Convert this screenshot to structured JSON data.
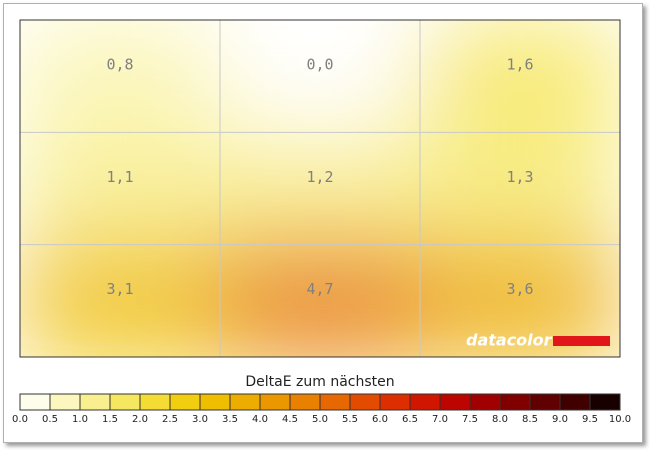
{
  "chart_data": {
    "type": "heatmap",
    "values": [
      [
        0.8,
        0.0,
        1.6
      ],
      [
        1.1,
        1.2,
        1.3
      ],
      [
        3.1,
        4.7,
        3.6
      ]
    ],
    "value_labels": [
      [
        "0,8",
        "0,0",
        "1,6"
      ],
      [
        "1,1",
        "1,2",
        "1,3"
      ],
      [
        "3,1",
        "4,7",
        "3,6"
      ]
    ],
    "grid": true,
    "logo": "datacolor",
    "colorbar_title": "DeltaE zum nächsten",
    "colorbar_lim": [
      0,
      10
    ],
    "colorbar_ticks": [
      {
        "value": 0,
        "label": "0.0"
      },
      0.5,
      {
        "value": 1,
        "label": "1.0"
      },
      1.5,
      {
        "value": 2,
        "label": "2.0"
      },
      2.5,
      {
        "value": 3,
        "label": "3.0"
      },
      3.5,
      {
        "value": 4,
        "label": "4.0"
      },
      4.5,
      {
        "value": 5,
        "label": "5.0"
      },
      5.5,
      {
        "value": 6,
        "label": "6.0"
      },
      6.5,
      {
        "value": 7,
        "label": "7.0"
      },
      7.5,
      {
        "value": 8,
        "label": "8.0"
      },
      8.5,
      {
        "value": 9,
        "label": "9.0"
      },
      9.5,
      {
        "value": 10,
        "label": "10.0"
      }
    ],
    "colorscale": [
      [
        0,
        "#ffffff"
      ],
      [
        0.5,
        "#fdfbd6"
      ],
      [
        1,
        "#faf3a6"
      ],
      [
        1.5,
        "#f7eb78"
      ],
      [
        2,
        "#f5e24a"
      ],
      [
        2.5,
        "#f2d61e"
      ],
      [
        3,
        "#f0c600"
      ],
      [
        3.5,
        "#eeb600"
      ],
      [
        4,
        "#eca200"
      ],
      [
        4.5,
        "#ea8c00"
      ],
      [
        5,
        "#e87400"
      ],
      [
        5.5,
        "#e65a00"
      ],
      [
        6,
        "#e03c00"
      ],
      [
        6.5,
        "#d82000"
      ],
      [
        7,
        "#c80a00"
      ],
      [
        7.5,
        "#b00000"
      ],
      [
        8,
        "#900000"
      ],
      [
        8.5,
        "#700000"
      ],
      [
        9,
        "#500000"
      ],
      [
        9.5,
        "#300000"
      ],
      [
        10,
        "#000000"
      ]
    ]
  }
}
